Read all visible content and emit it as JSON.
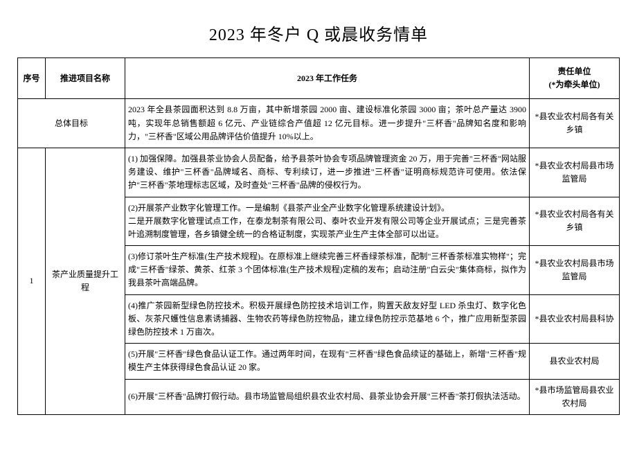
{
  "title": "2023 年冬户 Q 或晨收务情单",
  "headers": {
    "index": "序号",
    "project": "推进项目名称",
    "task": "2023 年工作任务",
    "unit": "责任单位\n(*为牵头单位)"
  },
  "rows": {
    "overall": {
      "project": "总体目标",
      "task": "2023 年全县茶园面积达到 8.8 万亩，其中新增茶园 2000 亩、建设标准化茶园 3000 亩；茶叶总产量达 3900 吨，实现年总销售额超 6 亿元、产业链综合产值超 12 亿元目标。进一步提升\"三杯香\"品牌知名度和影响力，\"三杯香\"区域公用品牌评估价值提升 10%以上。",
      "unit": "*县农业农村局各有关乡镇"
    },
    "item1": {
      "index": "1",
      "project": "茶产业质量提升工程",
      "tasks": [
        {
          "task": "(1) 加强保障。加强县茶业协会人员配备，给予县茶叶协会专项品牌管理资金 20 万，用于完善\"三杯香\"网站服务建设、维护\"三杯香\"品牌域名、商标、专利续订，进一步推进\"三杯香\"证明商标规范许可使用。依法保护\"三杯香\"茶地理标志区域，及时查处\"三杯香\"品牌的侵权行为。",
          "unit": "*县农业农村局县市场监管局"
        },
        {
          "task": "(2)开展茶产业数字化管理工作。一是编制《县茶产业全产业数字化管理系统建设计划》。\n二是开展数字化管理试点工作，在泰龙制茶有限公司、泰叶农业开发有限公司等企业开展试点；三是完善茶叶追溯制度管理，各乡镇健全统一的合格证制度，实现茶产业生产主体全部可以出证。",
          "unit": "*县农业农村局各有关乡镇"
        },
        {
          "task": "(3)修订茶叶生产标准(生产技术规程)。在原标准上继续完善三杯香绿茶标准，配制\"三杯香茶标准实物样\"；完成\"三杯香\"绿茶、黄茶、红茶 3 个团体标准(生产技术规程)定稿的发布；启动注册\"白云尖\"集体商标，拟作为我县茶叶高端品牌。",
          "unit": "*县农业农村局县市场监管局"
        },
        {
          "task": "(4)推广茶园新型绿色防控技术。积极开展绿色防控技术培训工作，购置天敌友好型 LED 杀虫灯、数字化色板、灰茶尺蠖性信息素诱捕器、生物农药等绿色防控物品，建立绿色防控示范基地 6 个，推广应用新型茶园绿色防控技术 1 万亩次。",
          "unit": "*县农业农村局县科协"
        },
        {
          "task": "(5)开展\"三杯香\"绿色食品认证工作。通过两年时间，在现有\"三杯香\"绿色食品续证的基础上，新增\"三杯香\"规模生产主体获得绿色食品认证 20 家。",
          "unit": "县农业农村局"
        },
        {
          "task": "(6)开展\"三杯香\"品牌打假行动。县市场监管局组织县农业农村局、县茶业协会开展\"三杯香\"茶打假执法活动。",
          "unit": "*县市场监管局县农业农村局"
        }
      ]
    }
  }
}
